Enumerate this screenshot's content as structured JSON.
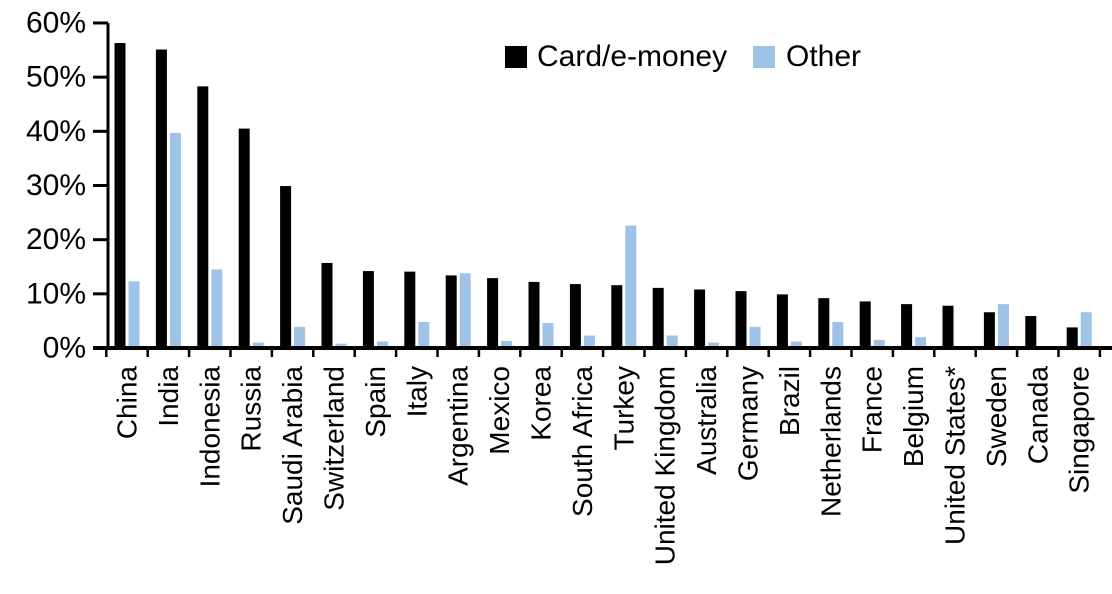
{
  "chart_data": {
    "type": "bar",
    "title": "",
    "xlabel": "",
    "ylabel": "",
    "ylim": [
      0,
      60
    ],
    "ytick_step": 10,
    "yticks": [
      "0%",
      "10%",
      "20%",
      "30%",
      "40%",
      "50%",
      "60%"
    ],
    "grid": false,
    "legend_position": "top-center",
    "categories": [
      "China",
      "India",
      "Indonesia",
      "Russia",
      "Saudi Arabia",
      "Switzerland",
      "Spain",
      "Italy",
      "Argentina",
      "Mexico",
      "Korea",
      "South Africa",
      "Turkey",
      "United Kingdom",
      "Australia",
      "Germany",
      "Brazil",
      "Netherlands",
      "France",
      "Belgium",
      "United States*",
      "Sweden",
      "Canada",
      "Singapore"
    ],
    "series": [
      {
        "name": "Card/e-money",
        "color": "#000000",
        "values": [
          56.3,
          55.1,
          48.3,
          40.5,
          29.9,
          15.7,
          14.2,
          14.1,
          13.4,
          12.9,
          12.2,
          11.8,
          11.6,
          11.1,
          10.8,
          10.5,
          9.9,
          9.2,
          8.6,
          8.1,
          7.8,
          6.6,
          5.9,
          3.8
        ]
      },
      {
        "name": "Other",
        "color": "#9DC3E6",
        "values": [
          12.3,
          39.7,
          14.5,
          1.0,
          3.9,
          0.8,
          1.2,
          4.8,
          13.8,
          1.3,
          4.6,
          2.3,
          22.6,
          2.3,
          1.0,
          3.9,
          1.2,
          4.8,
          1.5,
          2.0,
          0.3,
          8.1,
          0.0,
          6.6
        ]
      }
    ],
    "axis_color": "#000000"
  }
}
